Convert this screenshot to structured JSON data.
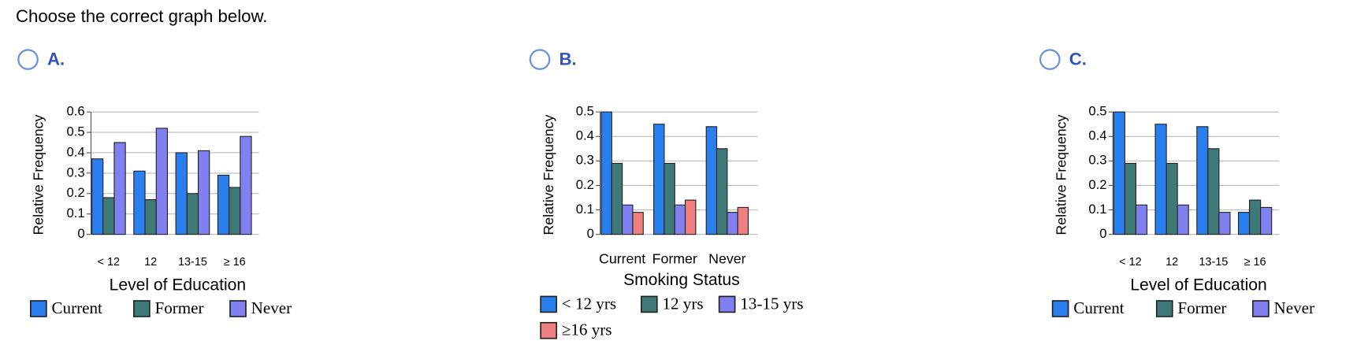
{
  "prompt": "Choose the correct graph below.",
  "options": [
    {
      "label": "A."
    },
    {
      "label": "B."
    },
    {
      "label": "C."
    }
  ],
  "chart_data": [
    {
      "type": "bar",
      "xlabel": "Level of Education",
      "ylabel": "Relative Frequency",
      "categories": [
        "< 12",
        "12",
        "13-15",
        "≥ 16"
      ],
      "series": [
        {
          "name": "Current",
          "color": "#2a7fef",
          "values": [
            0.37,
            0.31,
            0.4,
            0.29
          ]
        },
        {
          "name": "Former",
          "color": "#407a78",
          "values": [
            0.18,
            0.17,
            0.2,
            0.23
          ]
        },
        {
          "name": "Never",
          "color": "#8080f0",
          "values": [
            0.45,
            0.52,
            0.41,
            0.48
          ]
        }
      ],
      "ylim": [
        0,
        0.6
      ],
      "yticks": [
        0,
        0.1,
        0.2,
        0.3,
        0.4,
        0.5,
        0.6
      ],
      "grid": true
    },
    {
      "type": "bar",
      "xlabel": "Smoking Status",
      "ylabel": "Relative Frequency",
      "categories": [
        "Current",
        "Former",
        "Never"
      ],
      "series": [
        {
          "name": "< 12 yrs",
          "color": "#2a7fef",
          "values": [
            0.5,
            0.45,
            0.44
          ]
        },
        {
          "name": "12 yrs",
          "color": "#407a78",
          "values": [
            0.29,
            0.29,
            0.35
          ]
        },
        {
          "name": "13-15 yrs",
          "color": "#8080f0",
          "values": [
            0.12,
            0.12,
            0.09
          ]
        },
        {
          "name": "≥16 yrs",
          "color": "#f08080",
          "values": [
            0.09,
            0.14,
            0.11
          ]
        }
      ],
      "ylim": [
        0,
        0.5
      ],
      "yticks": [
        0,
        0.1,
        0.2,
        0.3,
        0.4,
        0.5
      ],
      "grid": true
    },
    {
      "type": "bar",
      "xlabel": "Level of Education",
      "ylabel": "Relative Frequency",
      "categories": [
        "< 12",
        "12",
        "13-15",
        "≥ 16"
      ],
      "series": [
        {
          "name": "Current",
          "color": "#2a7fef",
          "values": [
            0.5,
            0.45,
            0.44,
            0.09
          ]
        },
        {
          "name": "Former",
          "color": "#407a78",
          "values": [
            0.29,
            0.29,
            0.35,
            0.14
          ]
        },
        {
          "name": "Never",
          "color": "#8080f0",
          "values": [
            0.12,
            0.12,
            0.09,
            0.11
          ]
        }
      ],
      "ylim": [
        0,
        0.5
      ],
      "yticks": [
        0,
        0.1,
        0.2,
        0.3,
        0.4,
        0.5
      ],
      "grid": true
    }
  ]
}
